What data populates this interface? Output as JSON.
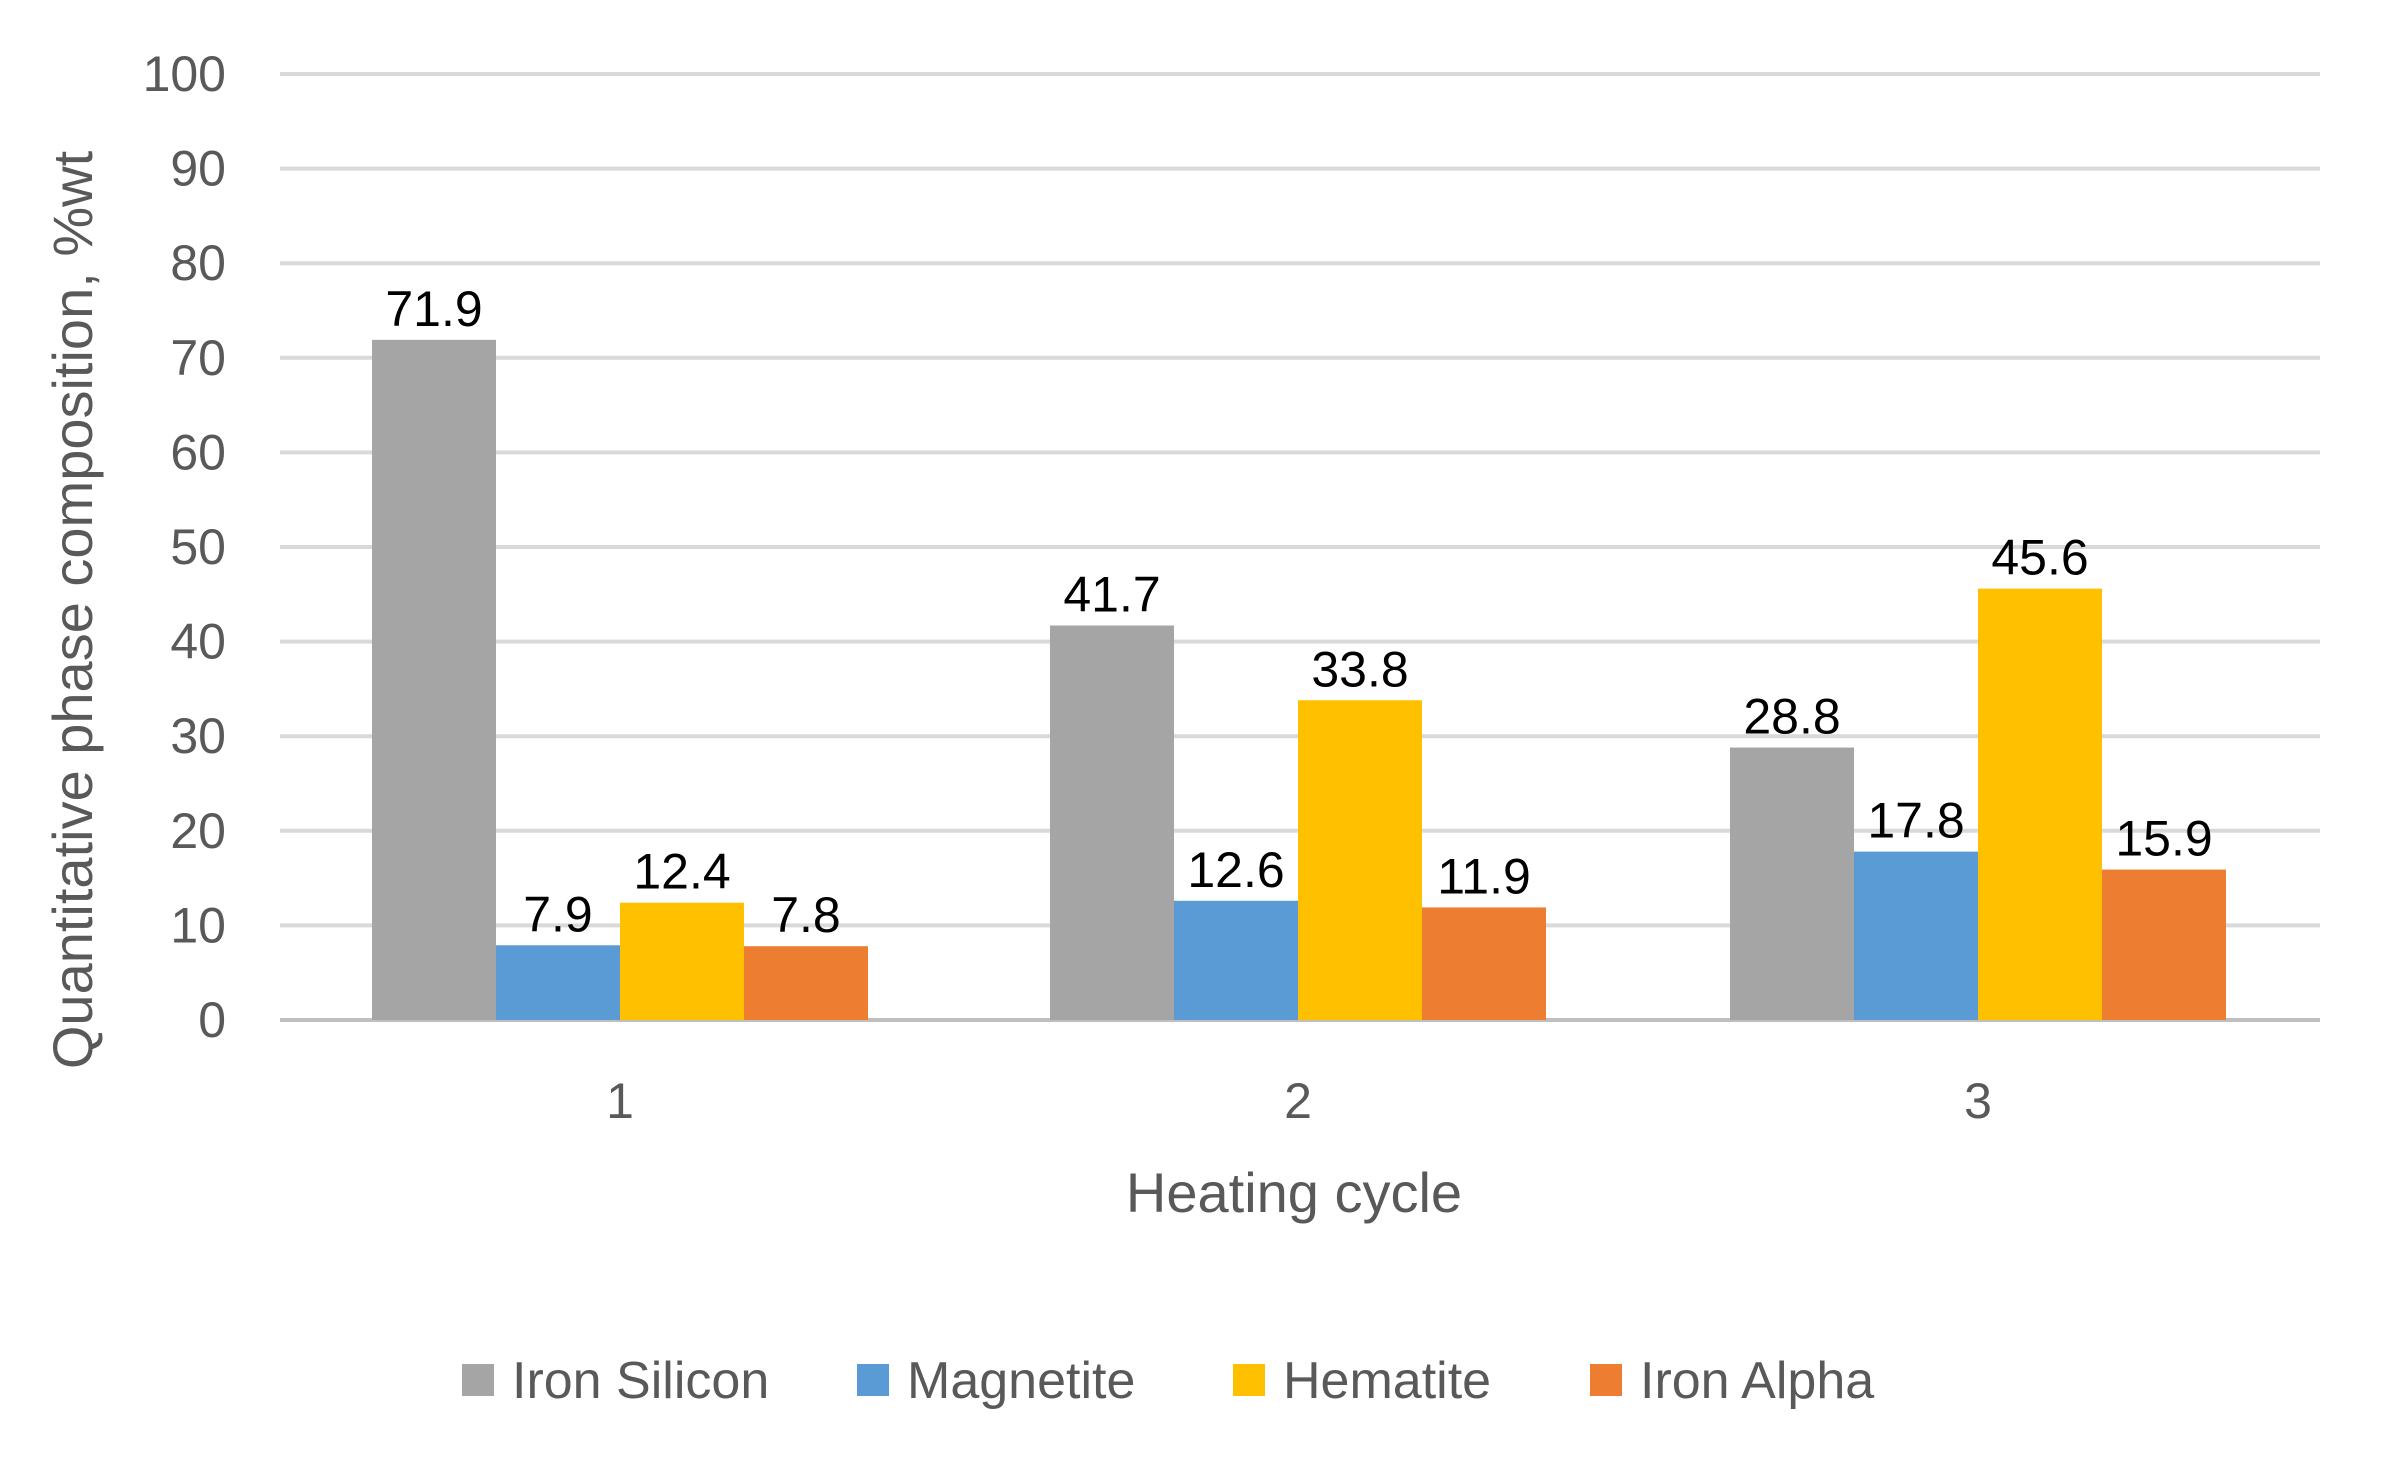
{
  "chart_data": {
    "type": "bar",
    "title": "",
    "xlabel": "Heating cycle",
    "ylabel": "Quantitative phase composition, %wt",
    "ylim": [
      0,
      100
    ],
    "yticks": [
      0,
      10,
      20,
      30,
      40,
      50,
      60,
      70,
      80,
      90,
      100
    ],
    "grid": true,
    "legend_position": "bottom",
    "categories": [
      "1",
      "2",
      "3"
    ],
    "series": [
      {
        "name": "Iron Silicon",
        "color": "#A5A5A5",
        "values": [
          71.9,
          41.7,
          28.8
        ],
        "labels": [
          "71.9",
          "41.7",
          "28.8"
        ]
      },
      {
        "name": "Magnetite",
        "color": "#5B9BD5",
        "values": [
          7.9,
          12.6,
          17.8
        ],
        "labels": [
          "7.9",
          "12.6",
          "17.8"
        ]
      },
      {
        "name": "Hematite",
        "color": "#FFC000",
        "values": [
          12.4,
          33.8,
          45.6
        ],
        "labels": [
          "12.4",
          "33.8",
          "45.6"
        ]
      },
      {
        "name": "Iron Alpha",
        "color": "#ED7D31",
        "values": [
          7.8,
          11.9,
          15.9
        ],
        "labels": [
          "7.8",
          "11.9",
          "15.9"
        ]
      }
    ]
  }
}
